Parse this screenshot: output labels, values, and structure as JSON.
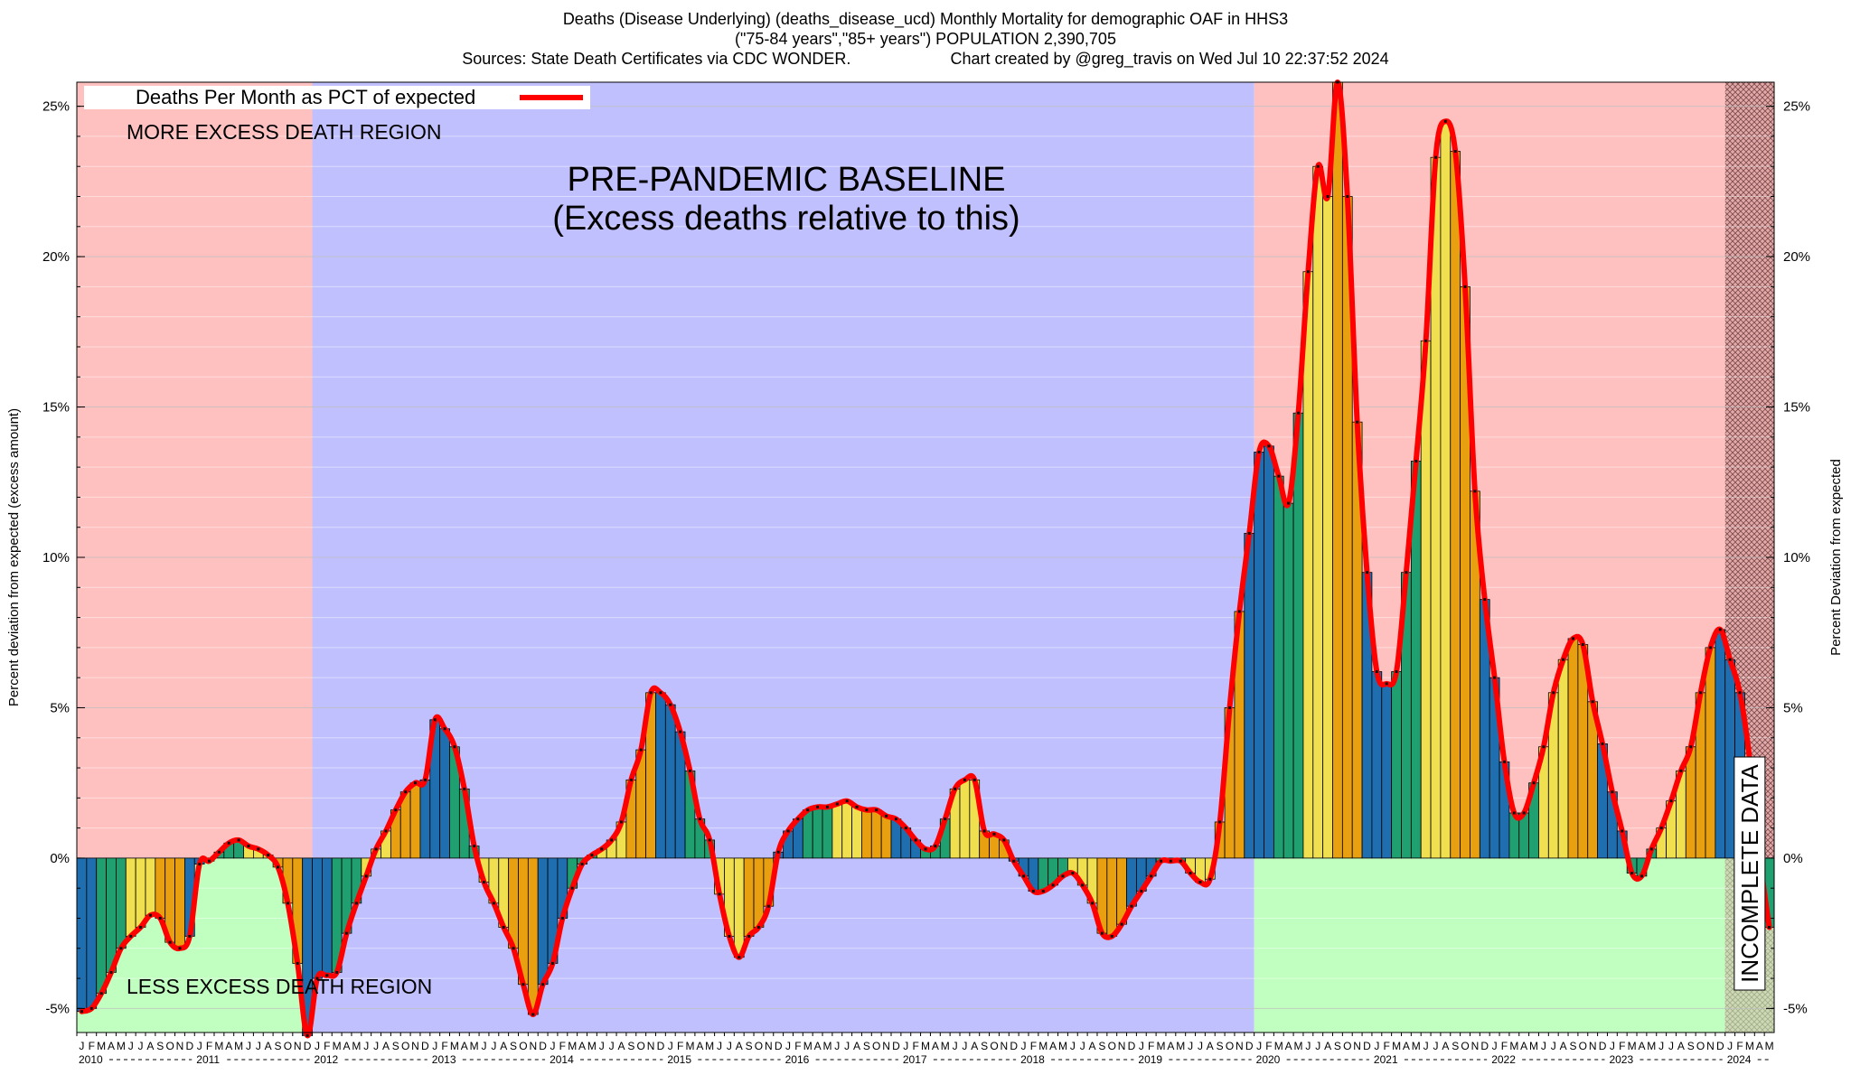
{
  "header": {
    "title_line1": "Deaths (Disease Underlying) (deaths_disease_ucd) Monthly Mortality for demographic OAF in HHS3",
    "title_line2": "(\"75-84 years\",\"85+ years\") POPULATION 2,390,705",
    "title_line3_left": "Sources: State Death Certificates via CDC WONDER.",
    "title_line3_right": "Chart created by @greg_travis on Wed Jul 10 22:37:52 2024"
  },
  "annotations": {
    "more_excess": "MORE EXCESS DEATH REGION",
    "less_excess": "LESS EXCESS DEATH REGION",
    "baseline_line1": "PRE-PANDEMIC BASELINE",
    "baseline_line2": "(Excess deaths relative to this)",
    "incomplete": "INCOMPLETE DATA"
  },
  "chart_data": {
    "type": "bar",
    "xlabel": "",
    "ylabel_left": "Percent deviation from expected (excess amount)",
    "ylabel_right": "Percent Deviation from expected",
    "ylim": [
      -5.8,
      25.8
    ],
    "yticks": [
      "-5%",
      "0%",
      "5%",
      "10%",
      "15%",
      "20%",
      "25%"
    ],
    "ytick_values": [
      -5,
      0,
      5,
      10,
      15,
      20,
      25
    ],
    "legend": {
      "label": "Deaths Per Month as PCT of expected",
      "position": "top-left"
    },
    "month_letters": [
      "J",
      "F",
      "M",
      "A",
      "M",
      "J",
      "J",
      "A",
      "S",
      "O",
      "N",
      "D"
    ],
    "years": [
      "2010",
      "2011",
      "2012",
      "2013",
      "2014",
      "2015",
      "2016",
      "2017",
      "2018",
      "2019",
      "2020",
      "2021",
      "2022",
      "2023",
      "2024"
    ],
    "x_start": "2010-01",
    "regions": [
      {
        "label": "MORE EXCESS DEATH REGION",
        "color": "#ffc0c0",
        "from": "2010-01",
        "to": "2011-12",
        "side": "above-zero"
      },
      {
        "label": "LESS EXCESS DEATH REGION",
        "color": "#c0ffc0",
        "from": "2010-01",
        "to": "2011-12",
        "side": "below-zero"
      },
      {
        "label": "PRE-PANDEMIC BASELINE",
        "color": "#c0c0ff",
        "from": "2012-01",
        "to": "2019-12",
        "side": "full"
      },
      {
        "label": "MORE EXCESS DEATH REGION",
        "color": "#ffc0c0",
        "from": "2020-01",
        "to": "2023-12",
        "side": "above-zero"
      },
      {
        "label": "LESS EXCESS DEATH REGION",
        "color": "#c0ffc0",
        "from": "2020-01",
        "to": "2023-12",
        "side": "below-zero"
      },
      {
        "label": "INCOMPLETE DATA",
        "color": "#e0a0a0",
        "from": "2024-01",
        "to": "2024-05",
        "side": "full"
      }
    ],
    "bar_colors": [
      "#1f6fb0",
      "#1f6fb0",
      "#20a070",
      "#20a070",
      "#20a070",
      "#f0e050",
      "#f0e050",
      "#f0e050",
      "#e8a010",
      "#e8a010",
      "#e8a010",
      "#1f6fb0"
    ],
    "line_color": "#ff0000",
    "values": [
      -5.1,
      -5.0,
      -4.5,
      -3.8,
      -3.0,
      -2.6,
      -2.3,
      -1.9,
      -2.0,
      -2.8,
      -3.0,
      -2.6,
      -0.2,
      -0.1,
      0.2,
      0.5,
      0.6,
      0.4,
      0.3,
      0.1,
      -0.3,
      -1.5,
      -3.5,
      -5.9,
      -4.0,
      -3.9,
      -3.8,
      -2.5,
      -1.5,
      -0.6,
      0.3,
      0.9,
      1.6,
      2.2,
      2.5,
      2.6,
      4.6,
      4.3,
      3.7,
      2.3,
      0.4,
      -0.8,
      -1.5,
      -2.3,
      -3.0,
      -4.2,
      -5.2,
      -4.2,
      -3.5,
      -2.0,
      -1.0,
      -0.2,
      0.1,
      0.3,
      0.6,
      1.2,
      2.6,
      3.6,
      5.5,
      5.5,
      5.1,
      4.2,
      2.9,
      1.3,
      0.6,
      -1.2,
      -2.6,
      -3.3,
      -2.6,
      -2.3,
      -1.6,
      0.2,
      0.9,
      1.3,
      1.6,
      1.7,
      1.7,
      1.8,
      1.9,
      1.7,
      1.6,
      1.6,
      1.4,
      1.3,
      1.0,
      0.6,
      0.3,
      0.4,
      1.3,
      2.3,
      2.6,
      2.6,
      0.9,
      0.8,
      0.6,
      -0.1,
      -0.6,
      -1.1,
      -1.1,
      -0.9,
      -0.6,
      -0.5,
      -0.9,
      -1.5,
      -2.5,
      -2.6,
      -2.2,
      -1.6,
      -1.1,
      -0.6,
      -0.1,
      -0.1,
      -0.1,
      -0.5,
      -0.8,
      -0.7,
      1.2,
      5.0,
      8.2,
      10.8,
      13.5,
      13.7,
      12.7,
      11.8,
      14.8,
      19.5,
      23.0,
      22.0,
      25.8,
      22.0,
      14.5,
      9.5,
      6.2,
      5.8,
      6.2,
      9.5,
      13.2,
      17.2,
      23.3,
      24.5,
      23.5,
      19.0,
      12.2,
      8.6,
      6.0,
      3.2,
      1.5,
      1.5,
      2.5,
      3.7,
      5.5,
      6.6,
      7.3,
      7.1,
      5.2,
      3.8,
      2.2,
      0.9,
      -0.5,
      -0.6,
      0.3,
      1.0,
      1.9,
      2.9,
      3.7,
      5.5,
      7.0,
      7.6,
      6.6,
      5.5,
      3.3,
      0.1,
      -2.3
    ]
  }
}
